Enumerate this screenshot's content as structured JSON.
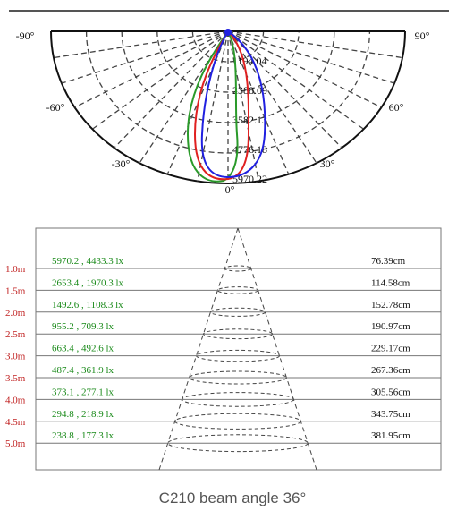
{
  "polar": {
    "angle_labels": [
      "-90°",
      "90°",
      "-60°",
      "60°",
      "-30°",
      "30°",
      "0°"
    ],
    "radial_labels": [
      "1194.04",
      "2388.09",
      "3582.13",
      "4776.18",
      "5970.22"
    ]
  },
  "table": {
    "distances": [
      "1.0m",
      "1.5m",
      "2.0m",
      "2.5m",
      "3.0m",
      "3.5m",
      "4.0m",
      "4.5m",
      "5.0m"
    ],
    "illuminance": [
      "5970.2 , 4433.3 lx",
      "2653.4 , 1970.3 lx",
      "1492.6 , 1108.3 lx",
      "955.2 , 709.3 lx",
      "663.4 , 492.6 lx",
      "487.4 , 361.9 lx",
      "373.1 , 277.1 lx",
      "294.8 , 218.9 lx",
      "238.8 , 177.3 lx"
    ],
    "diameters": [
      "76.39cm",
      "114.58cm",
      "152.78cm",
      "190.97cm",
      "229.17cm",
      "267.36cm",
      "305.56cm",
      "343.75cm",
      "381.95cm"
    ]
  },
  "caption": "C210 beam angle 36°"
}
